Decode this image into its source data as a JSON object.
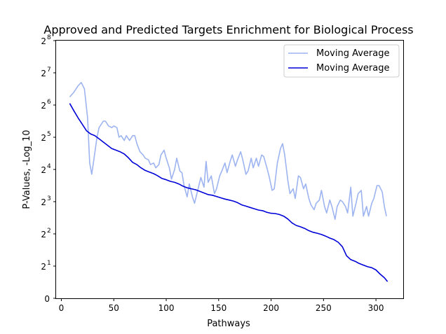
{
  "chart_data": {
    "type": "line",
    "title": "Approved and Predicted Targets Enrichment for Biological Process",
    "xlabel": "Pathways",
    "ylabel": "P-Values, -Log_10",
    "xlim": [
      -5,
      326
    ],
    "ylim": [
      0,
      8
    ],
    "y_scale": "log2",
    "x_ticks": [
      0,
      50,
      100,
      150,
      200,
      250,
      300
    ],
    "x_tick_labels": [
      "0",
      "50",
      "100",
      "150",
      "200",
      "250",
      "300"
    ],
    "y_ticks": [
      {
        "base": "0",
        "exp": ""
      },
      {
        "base": "2",
        "exp": "1"
      },
      {
        "base": "2",
        "exp": "2"
      },
      {
        "base": "2",
        "exp": "3"
      },
      {
        "base": "2",
        "exp": "4"
      },
      {
        "base": "2",
        "exp": "5"
      },
      {
        "base": "2",
        "exp": "6"
      },
      {
        "base": "2",
        "exp": "7"
      },
      {
        "base": "2",
        "exp": "8"
      }
    ],
    "grid": false,
    "legend_position": "top-right",
    "series": [
      {
        "name": "Moving Average",
        "color": "#9db4f0",
        "x": [
          8,
          12,
          16,
          19,
          22,
          25,
          27,
          29,
          31,
          34,
          36,
          40,
          42,
          45,
          48,
          50,
          53,
          55,
          57,
          60,
          62,
          65,
          68,
          70,
          72,
          75,
          78,
          80,
          83,
          85,
          88,
          90,
          93,
          95,
          98,
          100,
          103,
          105,
          108,
          110,
          113,
          115,
          117,
          120,
          122,
          125,
          127,
          130,
          133,
          136,
          138,
          140,
          143,
          146,
          148,
          151,
          153,
          156,
          158,
          161,
          163,
          166,
          168,
          171,
          173,
          176,
          178,
          181,
          183,
          186,
          188,
          191,
          193,
          196,
          198,
          201,
          203,
          206,
          209,
          211,
          213,
          216,
          218,
          221,
          223,
          226,
          228,
          231,
          233,
          236,
          238,
          241,
          243,
          246,
          248,
          251,
          253,
          256,
          258,
          261,
          263,
          266,
          268,
          271,
          273,
          276,
          278,
          281,
          283,
          286,
          288,
          291,
          293,
          296,
          298,
          301,
          303,
          306,
          308,
          310
        ],
        "y": [
          6.25,
          6.4,
          6.6,
          6.7,
          6.5,
          5.6,
          4.2,
          3.85,
          4.3,
          5,
          5.3,
          5.5,
          5.5,
          5.35,
          5.3,
          5.35,
          5.3,
          5,
          5.05,
          4.9,
          5.05,
          4.9,
          5.05,
          5.05,
          4.8,
          4.55,
          4.45,
          4.35,
          4.3,
          4.15,
          4.2,
          4.05,
          4.15,
          4.45,
          4.6,
          4.35,
          4.05,
          3.7,
          4,
          4.35,
          3.95,
          3.9,
          3.5,
          3.15,
          3.55,
          3.15,
          2.95,
          3.35,
          3.75,
          3.45,
          4.25,
          3.6,
          3.8,
          3.25,
          3.4,
          3.8,
          3.95,
          4.2,
          3.9,
          4.25,
          4.45,
          4.1,
          4.3,
          4.55,
          4.3,
          3.85,
          3.95,
          4.35,
          4.05,
          4.35,
          4.1,
          4.45,
          4.4,
          4.05,
          3.8,
          3.35,
          3.4,
          4.2,
          4.65,
          4.8,
          4.45,
          3.65,
          3.25,
          3.4,
          3.1,
          3.8,
          3.75,
          3.4,
          3.55,
          3.1,
          2.9,
          2.75,
          2.95,
          3.05,
          3.35,
          2.85,
          2.65,
          3.05,
          2.85,
          2.45,
          2.85,
          3.05,
          3,
          2.85,
          2.65,
          3.45,
          2.55,
          2.95,
          3.25,
          3.35,
          2.55,
          2.85,
          2.55,
          2.95,
          3.1,
          3.5,
          3.5,
          3.3,
          2.85,
          2.55
        ]
      },
      {
        "name": "Moving Average",
        "color": "#0000d8",
        "x": [
          8,
          12,
          16,
          20,
          24,
          28,
          32,
          36,
          40,
          44,
          48,
          52,
          56,
          60,
          64,
          68,
          72,
          76,
          80,
          84,
          88,
          92,
          96,
          100,
          104,
          108,
          112,
          116,
          120,
          124,
          128,
          132,
          136,
          140,
          144,
          148,
          152,
          156,
          160,
          164,
          168,
          172,
          176,
          180,
          184,
          188,
          192,
          196,
          200,
          204,
          208,
          212,
          216,
          220,
          224,
          228,
          232,
          236,
          240,
          244,
          248,
          252,
          256,
          260,
          264,
          268,
          272,
          276,
          280,
          284,
          288,
          292,
          296,
          300,
          304,
          308,
          311
        ],
        "y": [
          6.05,
          5.82,
          5.6,
          5.4,
          5.2,
          5.1,
          5.05,
          4.95,
          4.85,
          4.75,
          4.65,
          4.6,
          4.55,
          4.48,
          4.36,
          4.22,
          4.15,
          4.05,
          3.97,
          3.92,
          3.87,
          3.8,
          3.72,
          3.68,
          3.63,
          3.6,
          3.55,
          3.48,
          3.43,
          3.4,
          3.37,
          3.32,
          3.27,
          3.22,
          3.2,
          3.16,
          3.12,
          3.08,
          3.05,
          3.02,
          2.97,
          2.9,
          2.86,
          2.82,
          2.78,
          2.74,
          2.72,
          2.67,
          2.64,
          2.63,
          2.6,
          2.55,
          2.46,
          2.34,
          2.26,
          2.22,
          2.17,
          2.1,
          2.05,
          2.02,
          1.98,
          1.93,
          1.87,
          1.82,
          1.74,
          1.6,
          1.32,
          1.2,
          1.15,
          1.08,
          1.03,
          0.98,
          0.95,
          0.88,
          0.75,
          0.64,
          0.52
        ]
      }
    ]
  }
}
